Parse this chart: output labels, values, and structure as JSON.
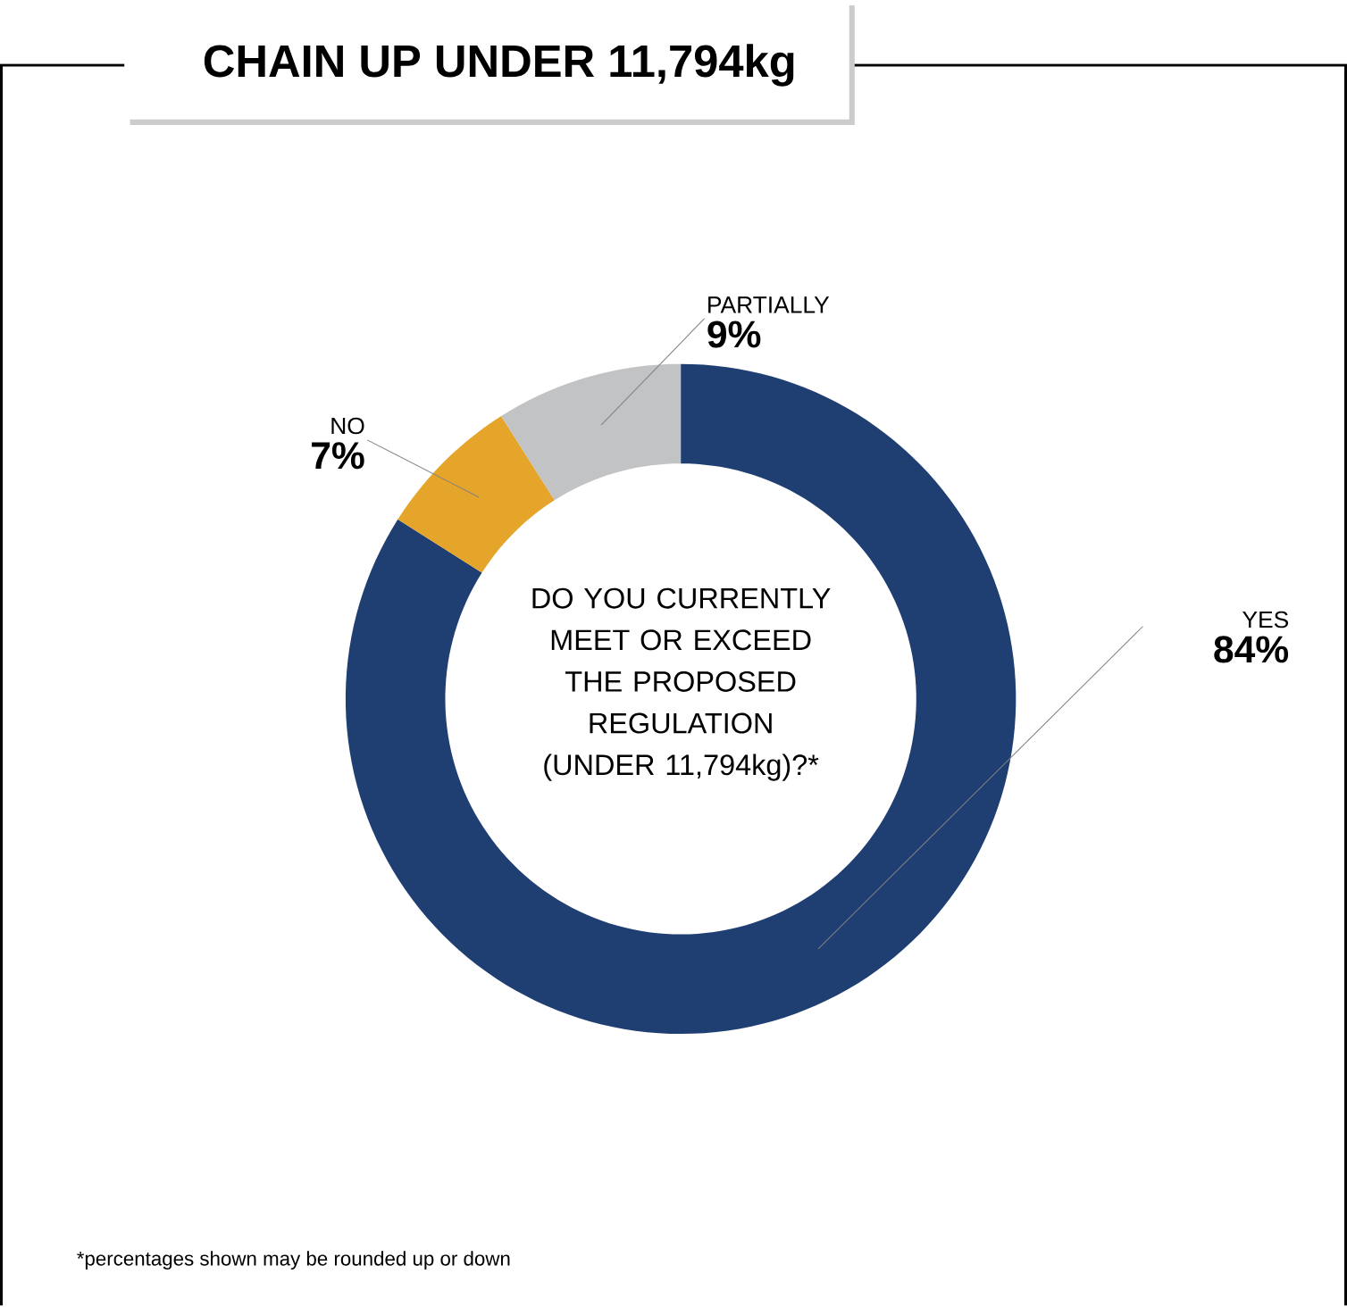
{
  "chart_data": {
    "type": "donut",
    "title": "CHAIN UP UNDER 11,794kg",
    "subtitle": "DO YOU CURRENTLY MEET OR EXCEED THE PROPOSED REGULATION (UNDER 11,794kg)?*",
    "categories": [
      "YES",
      "NO",
      "PARTIALLY"
    ],
    "values": [
      84,
      7,
      9
    ],
    "colors": [
      "#1f3f73",
      "#e5a52b",
      "#c2c3c5"
    ],
    "value_labels": [
      "84%",
      "7%",
      "9%"
    ],
    "annotations": [
      "*percentages shown may be rounded up or down"
    ]
  }
}
